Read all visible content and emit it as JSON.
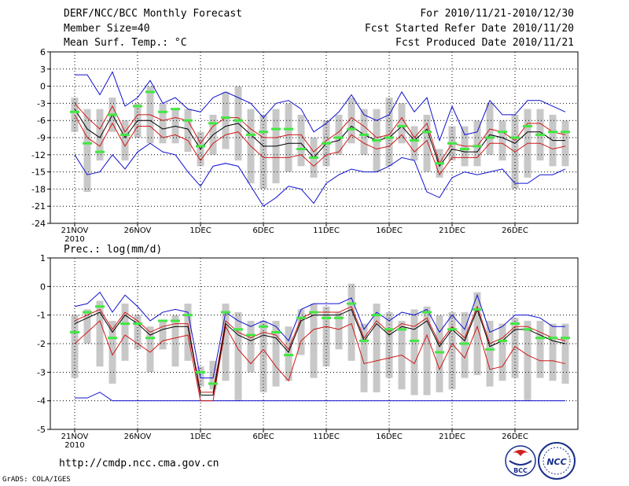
{
  "header": {
    "title": "DERF/NCC/BCC Monthly Forecast",
    "members": "Member Size=40",
    "variable": "Mean Surf. Temp.: °C",
    "period": "For 2010/11/21-2010/12/30",
    "started": "Fcst Started Refer Date 2010/11/20",
    "produced": "Fcst Produced Date 2010/11/21"
  },
  "footer": {
    "url": "http://cmdp.ncc.cma.gov.cn",
    "grads": "GrADS: COLA/IGES"
  },
  "logos": {
    "bcc": "BCC",
    "ncc": "NCC"
  },
  "colors": {
    "ensemble_mean": "#000000",
    "inner_bounds": "#d01818",
    "outer_bounds": "#1010d0",
    "boxes": "#c8c8c8",
    "median_marks": "#40e840",
    "grid": "#000000"
  },
  "chart_data": [
    {
      "type": "line",
      "title": "Mean Surf. Temp.: °C",
      "ylim": [
        -24,
        6
      ],
      "yticks": [
        6,
        3,
        0,
        -3,
        -6,
        -9,
        -12,
        -15,
        -18,
        -21,
        -24
      ],
      "ytick_labels": [
        "6",
        "3",
        "0",
        "-3",
        "-6",
        "-9",
        "-12",
        "-15",
        "-18",
        "-21",
        "-24"
      ],
      "x_days": 40,
      "xtick_day_index": [
        0,
        5,
        10,
        15,
        20,
        25,
        30,
        35
      ],
      "xtick_labels": [
        "21NOV",
        "26NOV",
        "1DEC",
        "6DEC",
        "11DEC",
        "16DEC",
        "21DEC",
        "26DEC"
      ],
      "year_label": "2010",
      "series": [
        {
          "name": "max",
          "color": "outer",
          "values": [
            2,
            2,
            -1.5,
            2.5,
            -3.5,
            -2,
            1,
            -3,
            -2,
            -4,
            -4.5,
            -2,
            -1,
            -2,
            -3,
            -5.5,
            -3,
            -2.5,
            -4,
            -8,
            -6.5,
            -4.5,
            -1.5,
            -5,
            -6,
            -5,
            -1,
            -4.5,
            -2,
            -9.5,
            -3.5,
            -8.5,
            -8,
            -2.5,
            -5,
            -5,
            -2.5,
            -2.5,
            -3.5,
            -4.5
          ]
        },
        {
          "name": "upper",
          "color": "inner",
          "values": [
            -3,
            -5.5,
            -7.5,
            -3.5,
            -8,
            -5,
            -5,
            -6,
            -5.5,
            -6,
            -10,
            -7,
            -5.5,
            -5.5,
            -7.5,
            -9,
            -9,
            -8.5,
            -8.5,
            -11.5,
            -9.5,
            -8,
            -5.5,
            -7,
            -9,
            -8.5,
            -5.5,
            -9,
            -6.5,
            -13.5,
            -10,
            -10.5,
            -10.5,
            -7.5,
            -8,
            -9.5,
            -6.5,
            -6.5,
            -8,
            -8.5
          ]
        },
        {
          "name": "mean",
          "color": "mean",
          "values": [
            -4,
            -7.5,
            -9,
            -5,
            -9,
            -6,
            -6,
            -7.5,
            -7,
            -7.5,
            -11,
            -8.5,
            -7,
            -6.5,
            -8.5,
            -10.5,
            -10.5,
            -10,
            -10,
            -12.5,
            -10,
            -9.5,
            -7,
            -8.5,
            -9.5,
            -9,
            -7,
            -9.5,
            -7.5,
            -14,
            -11,
            -11.5,
            -11.5,
            -8.5,
            -9,
            -10,
            -8,
            -8,
            -9.5,
            -9.5
          ]
        },
        {
          "name": "lower",
          "color": "inner",
          "values": [
            -5,
            -9,
            -10.5,
            -6.5,
            -10.5,
            -7,
            -7,
            -9,
            -8.5,
            -9.5,
            -13,
            -10,
            -8.5,
            -8,
            -10.5,
            -12.5,
            -12.5,
            -12.5,
            -12,
            -14,
            -12,
            -11.5,
            -8.5,
            -10,
            -11,
            -10.5,
            -8.5,
            -11.5,
            -9.5,
            -15.5,
            -12.5,
            -12.5,
            -12.5,
            -10,
            -10,
            -11.5,
            -10,
            -10,
            -11,
            -10.5
          ]
        },
        {
          "name": "min",
          "color": "outer",
          "values": [
            -12,
            -15.5,
            -15,
            -12,
            -14.5,
            -11.5,
            -10,
            -11.5,
            -12,
            -15,
            -17.5,
            -14,
            -13.5,
            -14,
            -17.5,
            -21,
            -19.5,
            -17.5,
            -18,
            -20.5,
            -17,
            -15.5,
            -14.5,
            -15,
            -15,
            -14,
            -12.5,
            -13,
            -18.5,
            -19.5,
            -16,
            -15,
            -15.5,
            -15,
            -14.5,
            -17,
            -17,
            -15.5,
            -15.5,
            -14.5
          ]
        },
        {
          "name": "box_top",
          "color": "boxes",
          "values": [
            -2,
            -4,
            -4,
            -2,
            -6,
            -3,
            0,
            -3,
            -4,
            -4,
            -8,
            -5,
            -1,
            0,
            -4,
            -5,
            -4,
            -3,
            -5,
            -9,
            -6,
            -5,
            -2,
            -4,
            -4,
            -2,
            -3,
            -7,
            -5,
            -11,
            -7,
            -7,
            -6,
            -3,
            -6,
            -5,
            -4,
            -4,
            -5,
            -6
          ]
        },
        {
          "name": "box_bottom",
          "color": "boxes",
          "values": [
            -8,
            -18.5,
            -13,
            -8,
            -13,
            -9,
            -10,
            -10,
            -10,
            -11.5,
            -14,
            -12,
            -11,
            -13,
            -17,
            -18,
            -17,
            -15,
            -14,
            -16,
            -14,
            -12,
            -10,
            -12,
            -15,
            -14,
            -10,
            -13,
            -15,
            -16,
            -13,
            -14,
            -14,
            -12,
            -13,
            -18,
            -16,
            -13,
            -14,
            -14
          ]
        },
        {
          "name": "median",
          "color": "median",
          "values": [
            -4.5,
            -10,
            -11.5,
            -5,
            -8.5,
            -3.5,
            -1,
            -4.5,
            -4,
            -6,
            -10.5,
            -6.5,
            -5.5,
            -6,
            -8.5,
            -8,
            -7.5,
            -7.5,
            -11,
            -12.5,
            -10,
            -9,
            -7.5,
            -8.5,
            -9.5,
            -9,
            -7,
            -9.5,
            -8,
            -13.5,
            -10,
            -11,
            -10.5,
            -9,
            -8,
            -9,
            -7,
            -8.5,
            -8,
            -8
          ]
        }
      ]
    },
    {
      "type": "line",
      "title": "Prec.: log(mm/d)",
      "ylim": [
        -5,
        1
      ],
      "yticks": [
        1,
        0,
        -1,
        -2,
        -3,
        -4,
        -5
      ],
      "ytick_labels": [
        "1",
        "0",
        "-1",
        "-2",
        "-3",
        "-4",
        "-5"
      ],
      "x_days": 40,
      "xtick_day_index": [
        0,
        5,
        10,
        15,
        20,
        25,
        30,
        35
      ],
      "xtick_labels": [
        "21NOV",
        "26NOV",
        "1DEC",
        "6DEC",
        "11DEC",
        "16DEC",
        "21DEC",
        "26DEC"
      ],
      "year_label": "2010",
      "series": [
        {
          "name": "max",
          "color": "outer",
          "values": [
            -0.7,
            -0.6,
            -0.2,
            -0.9,
            -0.3,
            -0.7,
            -1.2,
            -0.9,
            -0.8,
            -0.9,
            -3.2,
            -3.2,
            -0.9,
            -1.2,
            -1.4,
            -1.2,
            -1.4,
            -1.9,
            -0.8,
            -0.6,
            -0.6,
            -0.6,
            -0.4,
            -1.5,
            -0.9,
            -1.2,
            -0.9,
            -1.0,
            -0.8,
            -1.6,
            -1.0,
            -1.5,
            -0.3,
            -1.6,
            -1.4,
            -1.0,
            -1.0,
            -1.1,
            -1.4,
            -1.4
          ]
        },
        {
          "name": "upper",
          "color": "inner",
          "values": [
            -1.2,
            -1.0,
            -0.8,
            -1.5,
            -0.9,
            -1.2,
            -1.6,
            -1.4,
            -1.3,
            -1.3,
            -3.7,
            -3.7,
            -1.2,
            -1.6,
            -1.8,
            -1.6,
            -1.7,
            -2.2,
            -1.1,
            -0.9,
            -0.9,
            -0.9,
            -0.7,
            -1.8,
            -1.2,
            -1.6,
            -1.3,
            -1.4,
            -1.1,
            -2.0,
            -1.4,
            -1.8,
            -0.7,
            -2.0,
            -1.8,
            -1.4,
            -1.4,
            -1.6,
            -1.8,
            -1.9
          ]
        },
        {
          "name": "mean",
          "color": "mean",
          "values": [
            -1.3,
            -1.1,
            -0.9,
            -1.6,
            -1.0,
            -1.3,
            -1.7,
            -1.5,
            -1.4,
            -1.4,
            -3.8,
            -3.8,
            -1.3,
            -1.7,
            -1.9,
            -1.7,
            -1.8,
            -2.3,
            -1.2,
            -1.0,
            -1.0,
            -1.0,
            -0.8,
            -1.9,
            -1.3,
            -1.7,
            -1.4,
            -1.5,
            -1.2,
            -2.1,
            -1.5,
            -1.9,
            -0.8,
            -2.1,
            -1.9,
            -1.5,
            -1.5,
            -1.7,
            -1.9,
            -2.0
          ]
        },
        {
          "name": "lower",
          "color": "inner",
          "values": [
            -2.0,
            -1.6,
            -1.2,
            -2.4,
            -1.7,
            -2.0,
            -2.3,
            -1.9,
            -1.8,
            -1.7,
            -4.0,
            -4.0,
            -1.4,
            -2.2,
            -2.7,
            -2.2,
            -2.8,
            -3.3,
            -1.9,
            -1.5,
            -1.4,
            -1.5,
            -1.3,
            -2.7,
            -2.6,
            -2.5,
            -2.4,
            -2.7,
            -1.7,
            -2.9,
            -2.0,
            -2.5,
            -1.4,
            -2.9,
            -2.8,
            -2.1,
            -2.4,
            -2.6,
            -2.6,
            -2.7
          ]
        },
        {
          "name": "min",
          "color": "outer",
          "values": [
            -3.9,
            -3.9,
            -3.7,
            -4,
            -4,
            -4,
            -4,
            -4,
            -4,
            -4,
            -4,
            -4,
            -4,
            -4,
            -4,
            -4,
            -4,
            -4,
            -4,
            -4,
            -4,
            -4,
            -4,
            -4,
            -4,
            -4,
            -4,
            -4,
            -4,
            -4,
            -4,
            -4,
            -4,
            -4,
            -4,
            -4,
            -4,
            -4,
            -4,
            -4
          ]
        },
        {
          "name": "box_top",
          "color": "boxes",
          "values": [
            -1.0,
            -0.8,
            -0.5,
            -1.2,
            -0.6,
            -1.0,
            -1.4,
            -1.2,
            -1.0,
            -0.6,
            -2.8,
            -2.6,
            -0.6,
            -0.9,
            -1.2,
            -1.2,
            -1.2,
            -1.4,
            -0.8,
            -0.6,
            -0.7,
            -0.9,
            0.1,
            -1.3,
            -0.6,
            -0.9,
            -1.2,
            -0.8,
            -0.7,
            -1.0,
            -0.9,
            -0.9,
            -0.2,
            -1.2,
            -1.3,
            -1.1,
            -1.2,
            -1.2,
            -1.3,
            -1.3
          ]
        },
        {
          "name": "box_bottom",
          "color": "boxes",
          "values": [
            -3.2,
            -2.0,
            -2.8,
            -3.4,
            -2.6,
            -2.2,
            -3.0,
            -2.2,
            -2.8,
            -2.6,
            -3.5,
            -3.6,
            -3.3,
            -4.0,
            -3.0,
            -3.7,
            -3.5,
            -3.3,
            -2.4,
            -3.2,
            -2.8,
            -2.2,
            -2.6,
            -3.7,
            -3.7,
            -3.2,
            -3.6,
            -3.8,
            -3.8,
            -3.7,
            -3.6,
            -3.2,
            -3.1,
            -3.5,
            -3.3,
            -3.2,
            -4.0,
            -3.2,
            -3.3,
            -3.4
          ]
        },
        {
          "name": "median",
          "color": "median",
          "values": [
            -1.6,
            -0.9,
            -0.7,
            -1.8,
            -1.3,
            -1.3,
            -1.8,
            -1.2,
            -1.2,
            -1.0,
            -3.0,
            -3.4,
            -0.9,
            -1.5,
            -1.7,
            -1.4,
            -1.6,
            -2.4,
            -1.1,
            -0.9,
            -1.1,
            -1.1,
            -0.6,
            -1.9,
            -1.0,
            -1.5,
            -1.5,
            -1.9,
            -0.9,
            -2.3,
            -1.5,
            -2.0,
            -0.8,
            -2.2,
            -1.9,
            -1.3,
            -1.5,
            -1.8,
            -1.8,
            -1.8
          ]
        }
      ]
    }
  ]
}
